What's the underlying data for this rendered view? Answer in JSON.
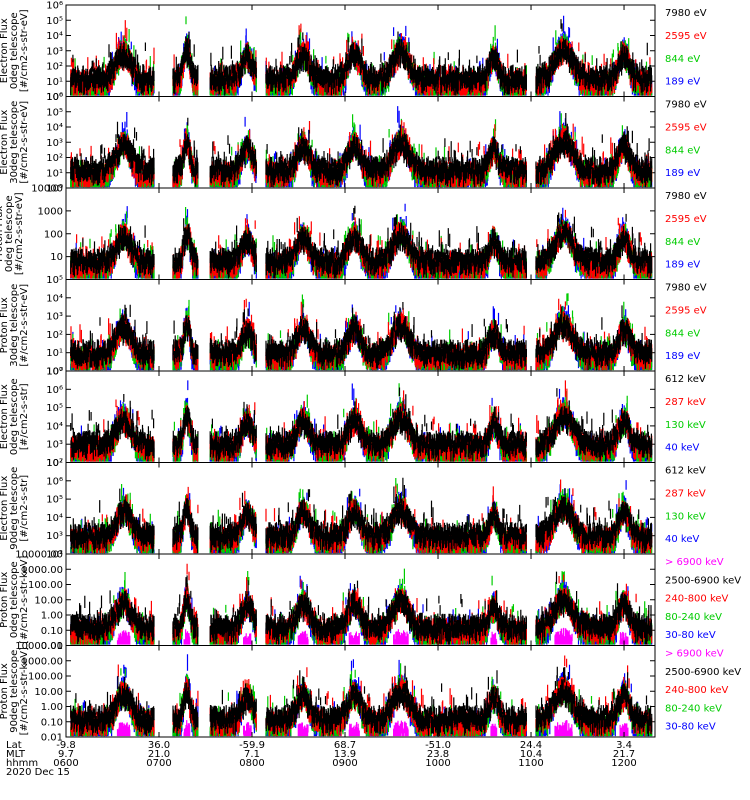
{
  "chart_data": {
    "type": "line",
    "panels": [
      {
        "id": "ted-electron-0deg",
        "ylabel": [
          "TED",
          "Electron Flux",
          "0deg telescope",
          "[#/cm2-s-str-eV]"
        ],
        "yscale": "log",
        "ylim": [
          1,
          1000000
        ],
        "ticks": [
          {
            "v": 1,
            "label": "10⁰"
          },
          {
            "v": 10,
            "label": "10¹"
          },
          {
            "v": 100,
            "label": "10²"
          },
          {
            "v": 1000,
            "label": "10³"
          },
          {
            "v": 10000,
            "label": "10⁴"
          },
          {
            "v": 100000,
            "label": "10⁵"
          },
          {
            "v": 1000000,
            "label": "10⁶"
          }
        ],
        "legend": [
          {
            "label": "7980 eV",
            "color": "#000000"
          },
          {
            "label": "2595 eV",
            "color": "#ff0000"
          },
          {
            "label": "844 eV",
            "color": "#00cc00"
          },
          {
            "label": "189 eV",
            "color": "#0000ff"
          }
        ]
      },
      {
        "id": "ted-electron-30deg",
        "ylabel": [
          "TED",
          "Electron Flux",
          "30deg telescope",
          "[#/cm2-s-str-eV]"
        ],
        "yscale": "log",
        "ylim": [
          1,
          1000000
        ],
        "ticks": [
          {
            "v": 1,
            "label": "10⁰"
          },
          {
            "v": 10,
            "label": "10¹"
          },
          {
            "v": 100,
            "label": "10²"
          },
          {
            "v": 1000,
            "label": "10³"
          },
          {
            "v": 10000,
            "label": "10⁴"
          },
          {
            "v": 100000,
            "label": "10⁵"
          },
          {
            "v": 1000000,
            "label": "10⁶"
          }
        ],
        "legend": [
          {
            "label": "7980 eV",
            "color": "#000000"
          },
          {
            "label": "2595 eV",
            "color": "#ff0000"
          },
          {
            "label": "844 eV",
            "color": "#00cc00"
          },
          {
            "label": "189 eV",
            "color": "#0000ff"
          }
        ]
      },
      {
        "id": "proton-0deg",
        "ylabel": [
          "Proton Flux",
          "0deg telescope",
          "[#/cm2-s-str-eV]"
        ],
        "yscale": "log",
        "ylim": [
          1,
          10000
        ],
        "ticks": [
          {
            "v": 10,
            "label": "10"
          },
          {
            "v": 100,
            "label": "100"
          },
          {
            "v": 1000,
            "label": "1000"
          },
          {
            "v": 10000,
            "label": "10000"
          }
        ],
        "legend": [
          {
            "label": "7980 eV",
            "color": "#000000"
          },
          {
            "label": "2595 eV",
            "color": "#ff0000"
          },
          {
            "label": "844 eV",
            "color": "#00cc00"
          },
          {
            "label": "189 eV",
            "color": "#0000ff"
          }
        ]
      },
      {
        "id": "ted-proton-30deg",
        "ylabel": [
          "TED",
          "Proton Flux",
          "30deg telescope",
          "[#/cm2-s-str-eV]"
        ],
        "yscale": "log",
        "ylim": [
          1,
          100000
        ],
        "ticks": [
          {
            "v": 1,
            "label": "10⁰"
          },
          {
            "v": 10,
            "label": "10¹"
          },
          {
            "v": 100,
            "label": "10²"
          },
          {
            "v": 1000,
            "label": "10³"
          },
          {
            "v": 10000,
            "label": "10⁴"
          },
          {
            "v": 100000,
            "label": "10⁵"
          }
        ],
        "legend": [
          {
            "label": "7980 eV",
            "color": "#000000"
          },
          {
            "label": "2595 eV",
            "color": "#ff0000"
          },
          {
            "label": "844 eV",
            "color": "#00cc00"
          },
          {
            "label": "189 eV",
            "color": "#0000ff"
          }
        ]
      },
      {
        "id": "meped-electron-0deg",
        "ylabel": [
          "MEPED",
          "Electron Flux",
          "0deg telescope",
          "[#/cm2-s-str]"
        ],
        "yscale": "log",
        "ylim": [
          100,
          10000000
        ],
        "ticks": [
          {
            "v": 100,
            "label": "10²"
          },
          {
            "v": 1000,
            "label": "10³"
          },
          {
            "v": 10000,
            "label": "10⁴"
          },
          {
            "v": 100000,
            "label": "10⁵"
          },
          {
            "v": 1000000,
            "label": "10⁶"
          },
          {
            "v": 10000000,
            "label": "10⁷"
          }
        ],
        "legend": [
          {
            "label": "612 keV",
            "color": "#000000"
          },
          {
            "label": "287 keV",
            "color": "#ff0000"
          },
          {
            "label": "130 keV",
            "color": "#00cc00"
          },
          {
            "label": "40 keV",
            "color": "#0000ff"
          }
        ]
      },
      {
        "id": "meped-electron-90deg",
        "ylabel": [
          "MEPED",
          "Electron Flux",
          "90deg telescope",
          "[#/cm2-s-str]"
        ],
        "yscale": "log",
        "ylim": [
          100,
          10000000
        ],
        "ticks": [
          {
            "v": 100,
            "label": "10²"
          },
          {
            "v": 1000,
            "label": "10³"
          },
          {
            "v": 10000,
            "label": "10⁴"
          },
          {
            "v": 100000,
            "label": "10⁵"
          },
          {
            "v": 1000000,
            "label": "10⁶"
          },
          {
            "v": 10000000,
            "label": "10⁷"
          }
        ],
        "legend": [
          {
            "label": "612 keV",
            "color": "#000000"
          },
          {
            "label": "287 keV",
            "color": "#ff0000"
          },
          {
            "label": "130 keV",
            "color": "#00cc00"
          },
          {
            "label": "40 keV",
            "color": "#0000ff"
          }
        ]
      },
      {
        "id": "meped-proton-0deg",
        "ylabel": [
          "MEPED",
          "Proton Flux",
          "0deg telescope",
          "[#/cm2-s-str-keV]"
        ],
        "yscale": "log",
        "ylim": [
          0.01,
          10000
        ],
        "ticks": [
          {
            "v": 0.01,
            "label": "0.01"
          },
          {
            "v": 0.1,
            "label": "0.10"
          },
          {
            "v": 1,
            "label": "1.00"
          },
          {
            "v": 10,
            "label": "10.00"
          },
          {
            "v": 100,
            "label": "100.00"
          },
          {
            "v": 1000,
            "label": "1000.00"
          },
          {
            "v": 10000,
            "label": "10000.00"
          }
        ],
        "legend": [
          {
            "label": "> 6900 keV",
            "color": "#ff00ff"
          },
          {
            "label": "2500-6900 keV",
            "color": "#000000"
          },
          {
            "label": "240-800 keV",
            "color": "#ff0000"
          },
          {
            "label": "80-240 keV",
            "color": "#00cc00"
          },
          {
            "label": "30-80 keV",
            "color": "#0000ff"
          }
        ]
      },
      {
        "id": "meped-proton-90deg",
        "ylabel": [
          "MEPED",
          "Proton Flux",
          "90deg telescope",
          "[#/cm2-s-str-keV]"
        ],
        "yscale": "log",
        "ylim": [
          0.01,
          10000
        ],
        "ticks": [
          {
            "v": 0.01,
            "label": "0.01"
          },
          {
            "v": 0.1,
            "label": "0.10"
          },
          {
            "v": 1,
            "label": "1.00"
          },
          {
            "v": 10,
            "label": "10.00"
          },
          {
            "v": 100,
            "label": "100.00"
          },
          {
            "v": 1000,
            "label": "1000.00"
          },
          {
            "v": 10000,
            "label": "10000.00"
          }
        ],
        "legend": [
          {
            "label": "> 6900 keV",
            "color": "#ff00ff"
          },
          {
            "label": "2500-6900 keV",
            "color": "#000000"
          },
          {
            "label": "240-800 keV",
            "color": "#ff0000"
          },
          {
            "label": "80-240 keV",
            "color": "#00cc00"
          },
          {
            "label": "30-80 keV",
            "color": "#0000ff"
          }
        ]
      }
    ],
    "time_axis": {
      "xlim": [
        0,
        6.333
      ],
      "row_labels": [
        "Lat",
        "MLT",
        "hhmm"
      ],
      "ticks": [
        {
          "t": 0.0,
          "lat": "-9.8",
          "mlt": "9.7",
          "hhmm": "0600"
        },
        {
          "t": 1.0,
          "lat": "36.0",
          "mlt": "21.0",
          "hhmm": "0700"
        },
        {
          "t": 2.0,
          "lat": "-59.9",
          "mlt": "7.1",
          "hhmm": "0800"
        },
        {
          "t": 3.0,
          "lat": "68.7",
          "mlt": "13.9",
          "hhmm": "0900"
        },
        {
          "t": 4.0,
          "lat": "-51.0",
          "mlt": "23.8",
          "hhmm": "1000"
        },
        {
          "t": 5.0,
          "lat": "24.4",
          "mlt": "10.4",
          "hhmm": "1100"
        },
        {
          "t": 6.0,
          "lat": "3.4",
          "mlt": "21.7",
          "hhmm": "1200"
        }
      ],
      "date": "2020 Dec 15"
    },
    "passes": [
      {
        "center": 0.62,
        "width": 0.16,
        "peak": 0.85
      },
      {
        "center": 1.3,
        "width": 0.07,
        "peak": 0.95
      },
      {
        "center": 1.95,
        "width": 0.12,
        "peak": 0.75
      },
      {
        "center": 2.55,
        "width": 0.14,
        "peak": 0.8
      },
      {
        "center": 3.1,
        "width": 0.14,
        "peak": 0.82
      },
      {
        "center": 3.6,
        "width": 0.18,
        "peak": 0.9
      },
      {
        "center": 4.6,
        "width": 0.1,
        "peak": 0.72
      },
      {
        "center": 5.35,
        "width": 0.2,
        "peak": 0.95
      },
      {
        "center": 6.0,
        "width": 0.12,
        "peak": 0.8
      }
    ]
  }
}
